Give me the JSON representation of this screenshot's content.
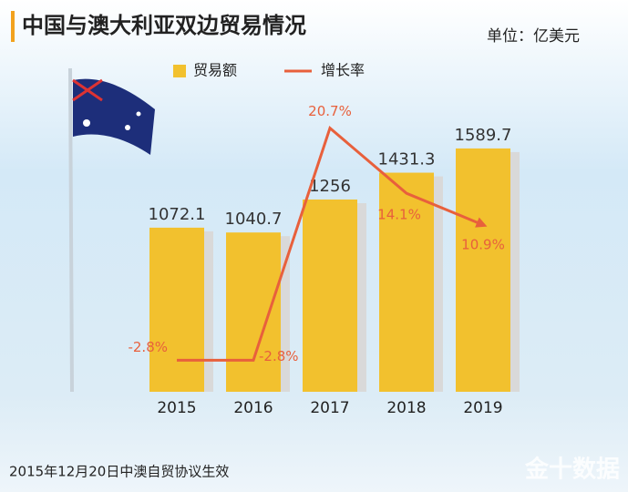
{
  "chart_data": {
    "type": "bar-line",
    "title": "中国与澳大利亚双边贸易情况",
    "unit": "单位：亿美元",
    "categories": [
      "2015",
      "2016",
      "2017",
      "2018",
      "2019"
    ],
    "series": [
      {
        "name": "贸易额",
        "type": "bar",
        "color": "#f2c12e",
        "values": [
          1072.1,
          1040.7,
          1256,
          1431.3,
          1589.7
        ]
      },
      {
        "name": "增长率",
        "type": "line",
        "axis": "y2",
        "color": "#e8603c",
        "values": [
          -2.8,
          -2.8,
          20.7,
          14.1,
          10.9
        ],
        "value_labels": [
          "-2.8%",
          "-2.8%",
          "20.7%",
          "14.1%",
          "10.9%"
        ]
      }
    ],
    "ylim": [
      0,
      2000
    ],
    "y2lim": [
      -6,
      25
    ],
    "footnote": "2015年12月20日中澳自贸协议生效",
    "watermark": "金十数据"
  }
}
